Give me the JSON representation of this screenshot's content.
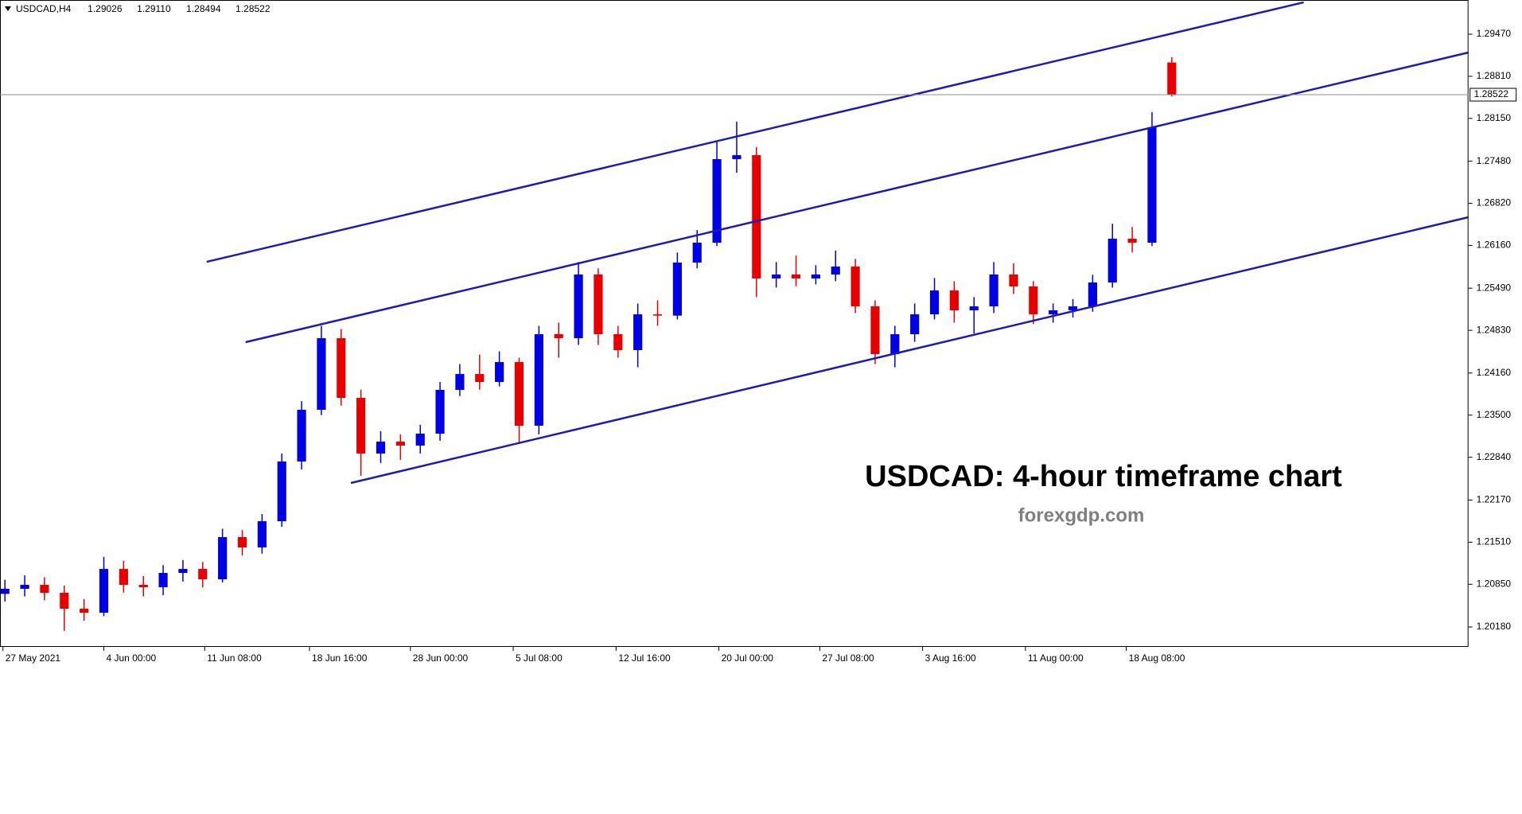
{
  "chart_data": {
    "type": "candlestick",
    "header": {
      "symbol": "USDCAD,H4",
      "values": [
        1.29026,
        {
          "value": 1.2911,
          "label": "1.29110"
        },
        1.28494,
        1.28522
      ]
    },
    "title": "USDCAD: 4-hour timeframe chart",
    "subtitle": "forexgdp.com",
    "up_color": "#0000e6",
    "down_color": "#e60000",
    "line_color": "#1c1cb4",
    "current_price": 1.28522,
    "ylim": [
      1.19881,
      1.30006
    ],
    "yticks": [
      {
        "value": 1.2018,
        "label": "1.20180"
      },
      {
        "value": 1.2085,
        "label": "1.20850"
      },
      {
        "value": 1.2151,
        "label": "1.21510"
      },
      {
        "value": 1.2217,
        "label": "1.22170"
      },
      {
        "value": 1.2284,
        "label": "1.22840"
      },
      {
        "value": 1.235,
        "label": "1.23500"
      },
      {
        "value": 1.2416,
        "label": "1.24160"
      },
      {
        "value": 1.2483,
        "label": "1.24830"
      },
      {
        "value": 1.2549,
        "label": "1.25490"
      },
      {
        "value": 1.2616,
        "label": "1.26160"
      },
      {
        "value": 1.2682,
        "label": "1.26820"
      },
      {
        "value": 1.2748,
        "label": "1.27480"
      },
      {
        "value": 1.2815,
        "label": "1.28150"
      },
      {
        "value": 1.2881,
        "label": "1.28810"
      },
      {
        "value": 1.2947,
        "label": "1.29470"
      }
    ],
    "xlim": [
      -0.25,
      74
    ],
    "xticks": [
      {
        "value": -0.1,
        "label": "27 May 2021"
      },
      {
        "value": 5,
        "label": "4 Jun 00:00"
      },
      {
        "value": 10.1,
        "label": "11 Jun 08:00"
      },
      {
        "value": 15.4,
        "label": "18 Jun 16:00"
      },
      {
        "value": 20.5,
        "label": "28 Jun 00:00"
      },
      {
        "value": 25.7,
        "label": "5 Jul 08:00"
      },
      {
        "value": 30.9,
        "label": "12 Jul 16:00"
      },
      {
        "value": 36.1,
        "label": "20 Jul 00:00"
      },
      {
        "value": 41.2,
        "label": "27 Jul 08:00"
      },
      {
        "value": 46.4,
        "label": "3 Aug 16:00"
      },
      {
        "value": 51.6,
        "label": "11 Aug 00:00"
      },
      {
        "value": 56.7,
        "label": "18 Aug 08:00"
      }
    ],
    "candles": [
      [
        1.207,
        1.2092,
        1.2058,
        1.20779
      ],
      [
        1.20779,
        1.2099,
        1.2066,
        1.20841
      ],
      [
        1.20841,
        1.2096,
        1.206,
        1.20716
      ],
      [
        1.20716,
        1.2083,
        1.2012,
        1.20467
      ],
      [
        1.20467,
        1.2062,
        1.2028,
        1.20404
      ],
      [
        1.20404,
        1.2128,
        1.2035,
        1.2109
      ],
      [
        1.2109,
        1.2122,
        1.2072,
        1.20841
      ],
      [
        1.20841,
        1.2098,
        1.2066,
        1.20803
      ],
      [
        1.20803,
        1.2115,
        1.2068,
        1.21028
      ],
      [
        1.21028,
        1.2123,
        1.2089,
        1.2109
      ],
      [
        1.2109,
        1.212,
        1.208,
        1.20928
      ],
      [
        1.20928,
        1.2172,
        1.2088,
        1.21589
      ],
      [
        1.21589,
        1.217,
        1.213,
        1.21427
      ],
      [
        1.21427,
        1.2195,
        1.2133,
        1.21838
      ],
      [
        1.21838,
        1.229,
        1.2175,
        1.22774
      ],
      [
        1.22774,
        1.2372,
        1.2265,
        1.23584
      ],
      [
        1.23584,
        1.249,
        1.235,
        1.24706
      ],
      [
        1.24706,
        1.2485,
        1.2365,
        1.23771
      ],
      [
        1.23771,
        1.239,
        1.2255,
        1.22898
      ],
      [
        1.22898,
        1.2325,
        1.2275,
        1.23085
      ],
      [
        1.23085,
        1.232,
        1.228,
        1.23023
      ],
      [
        1.23023,
        1.2335,
        1.229,
        1.2321
      ],
      [
        1.2321,
        1.2402,
        1.231,
        1.23896
      ],
      [
        1.23896,
        1.243,
        1.238,
        1.24145
      ],
      [
        1.24145,
        1.2445,
        1.239,
        1.2402
      ],
      [
        1.2402,
        1.245,
        1.2395,
        1.24332
      ],
      [
        1.24332,
        1.244,
        1.2305,
        1.23335
      ],
      [
        1.23335,
        1.249,
        1.232,
        1.24769
      ],
      [
        1.24769,
        1.2495,
        1.244,
        1.24706
      ],
      [
        1.24706,
        1.259,
        1.246,
        1.25704
      ],
      [
        1.25704,
        1.258,
        1.246,
        1.24769
      ],
      [
        1.24769,
        1.249,
        1.244,
        1.24519
      ],
      [
        1.24519,
        1.2525,
        1.2425,
        1.2508
      ],
      [
        1.2508,
        1.253,
        1.249,
        1.2506
      ],
      [
        1.2506,
        1.2605,
        1.25,
        1.25891
      ],
      [
        1.25891,
        1.264,
        1.258,
        1.26203
      ],
      [
        1.26203,
        1.278,
        1.2615,
        1.27512
      ],
      [
        1.27512,
        1.281,
        1.273,
        1.27574
      ],
      [
        1.27574,
        1.277,
        1.2535,
        1.25642
      ],
      [
        1.25642,
        1.259,
        1.255,
        1.25704
      ],
      [
        1.25704,
        1.26,
        1.2552,
        1.25642
      ],
      [
        1.25642,
        1.2585,
        1.2555,
        1.25704
      ],
      [
        1.25704,
        1.2608,
        1.256,
        1.25829
      ],
      [
        1.25829,
        1.2595,
        1.251,
        1.25205
      ],
      [
        1.25205,
        1.253,
        1.243,
        1.24457
      ],
      [
        1.24457,
        1.249,
        1.2425,
        1.24769
      ],
      [
        1.24769,
        1.2525,
        1.2465,
        1.2508
      ],
      [
        1.2508,
        1.2565,
        1.25,
        1.25454
      ],
      [
        1.25454,
        1.256,
        1.2495,
        1.25143
      ],
      [
        1.25143,
        1.2535,
        1.2478,
        1.25205
      ],
      [
        1.25205,
        1.259,
        1.251,
        1.25704
      ],
      [
        1.25704,
        1.2588,
        1.254,
        1.25517
      ],
      [
        1.25517,
        1.256,
        1.2493,
        1.2508
      ],
      [
        1.2508,
        1.2525,
        1.2495,
        1.25143
      ],
      [
        1.25143,
        1.2532,
        1.2503,
        1.25205
      ],
      [
        1.25205,
        1.257,
        1.2512,
        1.25579
      ],
      [
        1.25579,
        1.265,
        1.255,
        1.26265
      ],
      [
        1.26265,
        1.2645,
        1.2605,
        1.26203
      ],
      [
        1.26203,
        1.2825,
        1.2615,
        1.28011
      ],
      [
        1.29026,
        1.2911,
        1.28494,
        1.28522
      ]
    ],
    "trendlines": [
      [
        10.2,
        1.25903,
        65.67,
        1.29969
      ],
      [
        12.17,
        1.24644,
        74,
        1.29183
      ],
      [
        17.49,
        1.22437,
        74,
        1.26602
      ]
    ]
  }
}
